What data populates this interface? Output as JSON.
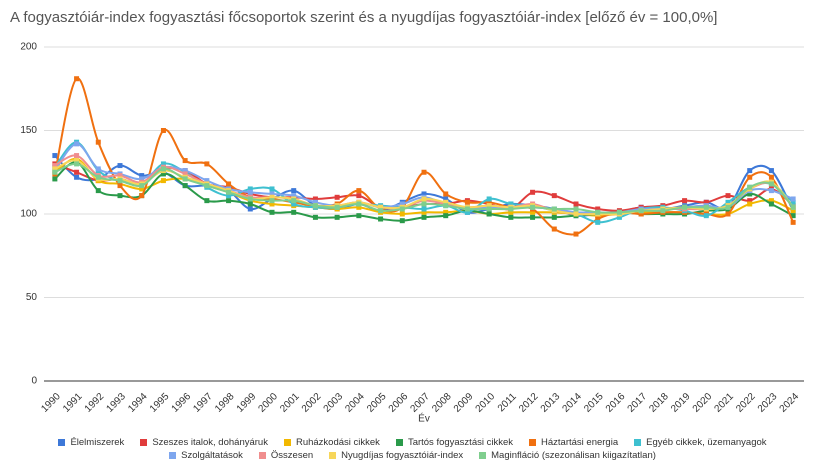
{
  "chart_data": {
    "type": "line",
    "title": "A fogyasztóiár-index fogyasztási főcsoportok szerint és a nyugdíjas fogyasztóiár-index [előző év = 100,0%]",
    "x_label": "Év",
    "categories": [
      "1990",
      "1991",
      "1992",
      "1993",
      "1994",
      "1995",
      "1996",
      "1997",
      "1998",
      "1999",
      "2000",
      "2001",
      "2002",
      "2003",
      "2004",
      "2005",
      "2006",
      "2007",
      "2008",
      "2009",
      "2010",
      "2011",
      "2012",
      "2013",
      "2014",
      "2015",
      "2016",
      "2017",
      "2018",
      "2019",
      "2020",
      "2021",
      "2022",
      "2023",
      "2024"
    ],
    "ylim": [
      0,
      200
    ],
    "yticks": [
      0,
      50,
      100,
      150,
      200
    ],
    "grid": true,
    "smooth": true,
    "legend": "bottom",
    "series": [
      {
        "name": "Élelmiszerek",
        "color": "#3d78d8",
        "values": [
          135,
          122,
          121,
          129,
          123,
          125,
          117,
          117,
          114,
          103,
          109,
          114,
          105,
          103,
          106,
          102,
          107,
          112,
          109,
          101,
          103,
          106,
          105,
          103,
          99,
          100,
          101,
          104,
          103,
          105,
          107,
          104,
          126,
          126,
          102
        ]
      },
      {
        "name": "Szeszes italok, dohányáruk",
        "color": "#e03c3c",
        "values": [
          130,
          125,
          120,
          121,
          118,
          127,
          126,
          118,
          116,
          112,
          110,
          110,
          109,
          110,
          111,
          104,
          104,
          106,
          106,
          108,
          106,
          103,
          113,
          111,
          106,
          103,
          102,
          104,
          105,
          108,
          107,
          111,
          108,
          115,
          105
        ]
      },
      {
        "name": "Ruházkodási cikkek",
        "color": "#f2b800",
        "values": [
          125,
          133,
          120,
          118,
          115,
          120,
          121,
          117,
          113,
          108,
          106,
          105,
          104,
          103,
          104,
          101,
          100,
          101,
          101,
          102,
          100,
          101,
          101,
          101,
          100,
          99,
          100,
          101,
          101,
          101,
          100,
          100,
          106,
          108,
          102
        ]
      },
      {
        "name": "Tartós fogyasztási cikkek",
        "color": "#2a9a4a",
        "values": [
          121,
          131,
          114,
          111,
          111,
          124,
          117,
          108,
          108,
          106,
          101,
          101,
          98,
          98,
          99,
          97,
          96,
          98,
          99,
          102,
          100,
          98,
          98,
          98,
          99,
          100,
          101,
          100,
          100,
          100,
          102,
          103,
          112,
          106,
          99
        ]
      },
      {
        "name": "Háztartási energia",
        "color": "#f07010",
        "values": [
          124,
          181,
          143,
          117,
          111,
          150,
          132,
          130,
          118,
          110,
          109,
          107,
          105,
          106,
          114,
          103,
          104,
          125,
          112,
          107,
          107,
          104,
          103,
          91,
          88,
          97,
          101,
          100,
          101,
          101,
          100,
          100,
          122,
          122,
          95
        ]
      },
      {
        "name": "Egyéb cikkek, üzemanyagok",
        "color": "#3ec0d0",
        "values": [
          128,
          143,
          126,
          120,
          118,
          130,
          125,
          116,
          111,
          115,
          115,
          106,
          104,
          104,
          106,
          105,
          104,
          103,
          105,
          101,
          109,
          106,
          105,
          102,
          100,
          95,
          98,
          103,
          104,
          102,
          99,
          107,
          116,
          118,
          107
        ]
      },
      {
        "name": "Szolgáltatások",
        "color": "#7ea6ee",
        "values": [
          126,
          142,
          127,
          124,
          121,
          128,
          126,
          120,
          115,
          113,
          112,
          111,
          107,
          105,
          107,
          104,
          106,
          110,
          106,
          104,
          104,
          104,
          104,
          103,
          101,
          101,
          101,
          103,
          103,
          104,
          105,
          104,
          114,
          114,
          109
        ]
      },
      {
        "name": "Összesen",
        "color": "#f08e8e",
        "values": [
          129,
          135,
          123,
          123,
          119,
          128,
          124,
          118,
          114,
          110,
          110,
          109,
          105,
          105,
          107,
          104,
          104,
          108,
          106,
          104,
          105,
          104,
          106,
          102,
          100,
          100,
          100,
          102,
          103,
          103,
          103,
          105,
          115,
          118,
          104
        ]
      },
      {
        "name": "Nyugdíjas fogyasztóiár-index",
        "color": "#f7d65a",
        "values": [
          127,
          132,
          121,
          121,
          118,
          126,
          122,
          118,
          114,
          109,
          110,
          109,
          105,
          105,
          107,
          104,
          104,
          109,
          107,
          104,
          105,
          104,
          105,
          102,
          100,
          100,
          100,
          102,
          103,
          104,
          103,
          105,
          115,
          119,
          104
        ]
      },
      {
        "name": "Maginfláció (szezonálisan kiigazítatlan)",
        "color": "#7fce8e",
        "values": [
          125,
          130,
          122,
          120,
          117,
          127,
          121,
          117,
          113,
          109,
          108,
          108,
          105,
          104,
          106,
          102,
          103,
          106,
          105,
          103,
          103,
          103,
          104,
          103,
          103,
          101,
          101,
          102,
          102,
          104,
          104,
          104,
          116,
          118,
          104
        ]
      }
    ]
  }
}
